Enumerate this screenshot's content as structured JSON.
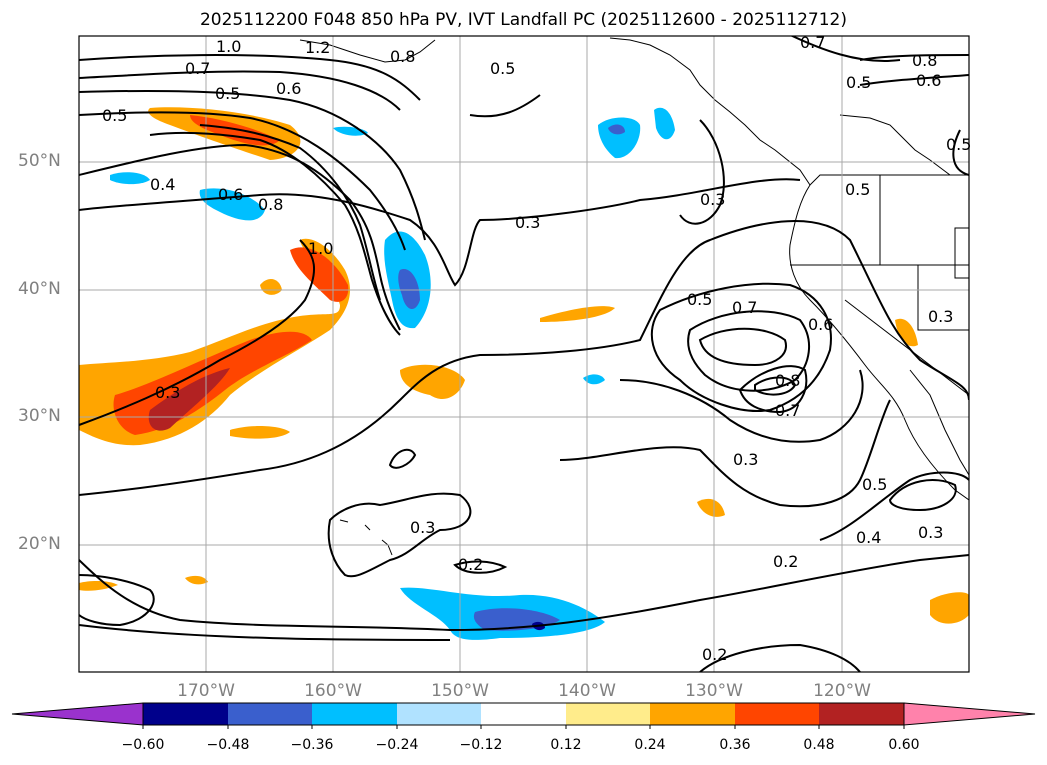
{
  "title": "2025112200 F048 850 hPa PV, IVT Landfall PC (2025112600 - 2025112712)",
  "lat_labels": [
    "50°N",
    "40°N",
    "30°N",
    "20°N"
  ],
  "lon_labels": [
    "170°W",
    "160°W",
    "150°W",
    "140°W",
    "130°W",
    "120°W"
  ],
  "contour_labels": [
    "1.0",
    "1.2",
    "0.8",
    "0.7",
    "0.5",
    "0.6",
    "0.5",
    "0.4",
    "0.6",
    "0.8",
    "1.0",
    "0.3",
    "0.3",
    "0.3",
    "0.5",
    "0.7",
    "0.6",
    "0.8",
    "0.7",
    "0.5",
    "0.3",
    "0.3",
    "0.5",
    "0.3",
    "0.2",
    "0.2",
    "0.2",
    "0.4",
    "0.3",
    "0.5",
    "0.8",
    "0.6",
    "0.5",
    "0.7",
    "0.5"
  ],
  "colorbar": {
    "ticks": [
      "−0.60",
      "−0.48",
      "−0.36",
      "−0.24",
      "−0.12",
      "0.12",
      "0.24",
      "0.36",
      "0.48",
      "0.60"
    ],
    "colors": [
      "#9a32cd",
      "#00008b",
      "#3a5fcd",
      "#00bfff",
      "#b0e2ff",
      "#ffffff",
      "#ffec8b",
      "#ffa500",
      "#ff4500",
      "#b22222",
      "#ff82ab"
    ]
  },
  "map_data": {
    "field": "850 hPa PV, IVT Landfall PC",
    "extent_lon": [
      -180,
      -110
    ],
    "extent_lat": [
      10,
      60
    ],
    "grid": true
  }
}
